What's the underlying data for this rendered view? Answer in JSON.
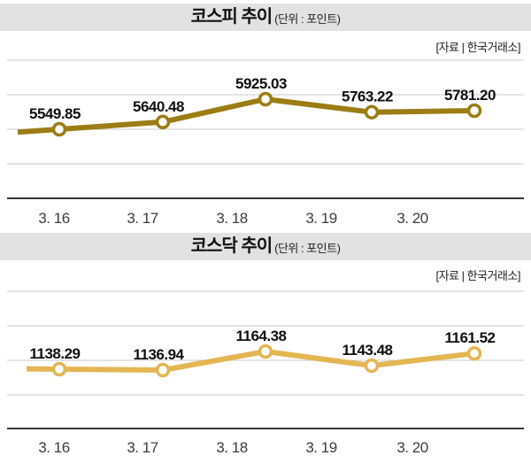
{
  "colors": {
    "kospi_line": "#9c7d15",
    "kosdaq_line": "#e3b652",
    "header_band": "#e2e2e2",
    "grid_line": "#c9c9c9",
    "axis_line": "#3a3a3a",
    "marker_fill": "#ffffff"
  },
  "chart_data": [
    {
      "type": "line",
      "title": "코스피 추이",
      "unit": "(단위 : 포인트)",
      "source": "[자료 | 한국거래소]",
      "categories": [
        "3. 16",
        "3. 17",
        "3. 18",
        "3. 19",
        "3. 20"
      ],
      "values": [
        5549.85,
        5640.48,
        5925.03,
        5763.22,
        5781.2
      ],
      "value_labels": [
        "5549.85",
        "5640.48",
        "5925.03",
        "5763.22",
        "5781.20"
      ],
      "line_color": "#9c7d15",
      "marker": "open-circle",
      "grid": true,
      "legend": "none",
      "ylim": [
        5549.85,
        5925.03
      ]
    },
    {
      "type": "line",
      "title": "코스닥 추이",
      "unit": "(단위 : 포인트)",
      "source": "[자료 | 한국거래소]",
      "categories": [
        "3. 16",
        "3. 17",
        "3. 18",
        "3. 19",
        "3. 20"
      ],
      "values": [
        1138.29,
        1136.94,
        1164.38,
        1143.48,
        1161.52
      ],
      "value_labels": [
        "1138.29",
        "1136.94",
        "1164.38",
        "1143.48",
        "1161.52"
      ],
      "line_color": "#e3b652",
      "marker": "open-circle",
      "grid": true,
      "legend": "none",
      "ylim": [
        1136.94,
        1164.38
      ]
    }
  ]
}
